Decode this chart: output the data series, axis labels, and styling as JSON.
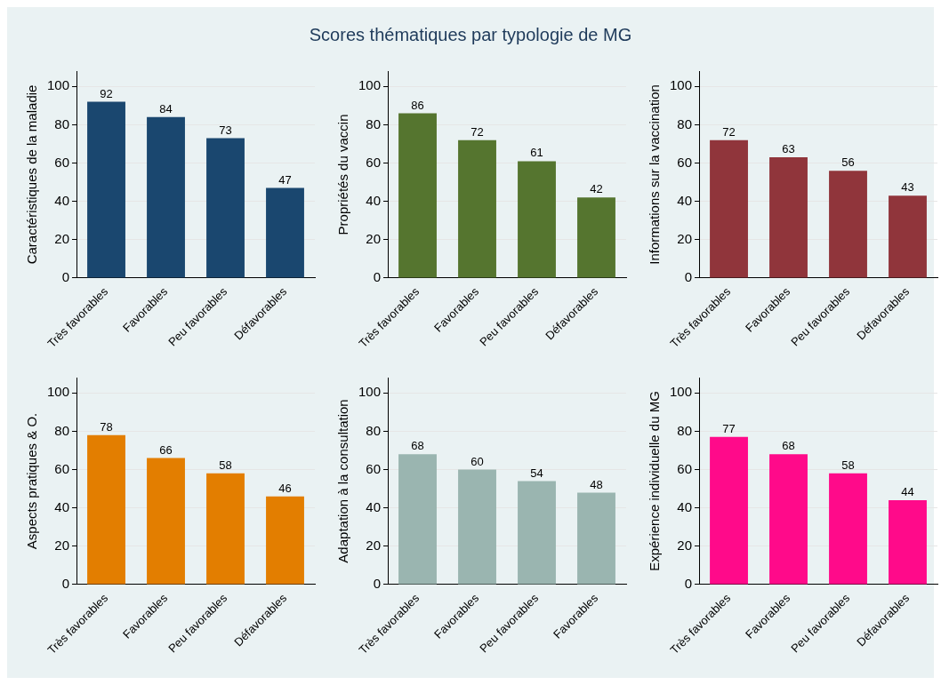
{
  "chart_data": [
    {
      "type": "other",
      "title": "Scores thématiques par typologie de MG"
    },
    {
      "type": "bar",
      "ylabel": "Caractéristiques de la maladie",
      "categories": [
        "Très favorables",
        "Favorables",
        "Peu favorables",
        "Défavorables"
      ],
      "values": [
        92,
        84,
        73,
        47
      ],
      "color": "#1a476f",
      "ylim": [
        0,
        108
      ],
      "yticks": [
        0,
        20,
        40,
        60,
        80,
        100
      ],
      "grid": "y",
      "data_labels": true
    },
    {
      "type": "bar",
      "ylabel": "Propriétés du vaccin",
      "categories": [
        "Très favorables",
        "Favorables",
        "Peu favorables",
        "Défavorables"
      ],
      "values": [
        86,
        72,
        61,
        42
      ],
      "color": "#55752f",
      "ylim": [
        0,
        108
      ],
      "yticks": [
        0,
        20,
        40,
        60,
        80,
        100
      ],
      "grid": "y",
      "data_labels": true
    },
    {
      "type": "bar",
      "ylabel": "Informations sur la vaccination",
      "categories": [
        "Très favorables",
        "Favorables",
        "Peu favorables",
        "Défavorables"
      ],
      "values": [
        72,
        63,
        56,
        43
      ],
      "color": "#90353b",
      "ylim": [
        0,
        108
      ],
      "yticks": [
        0,
        20,
        40,
        60,
        80,
        100
      ],
      "grid": "y",
      "data_labels": true
    },
    {
      "type": "bar",
      "ylabel": "Aspects pratiques & O.",
      "categories": [
        "Très favorables",
        "Favorables",
        "Peu favorables",
        "Défavorables"
      ],
      "values": [
        78,
        66,
        58,
        46
      ],
      "color": "#e37e00",
      "ylim": [
        0,
        108
      ],
      "yticks": [
        0,
        20,
        40,
        60,
        80,
        100
      ],
      "grid": "y",
      "data_labels": true
    },
    {
      "type": "bar",
      "ylabel": "Adaptation à la consultation",
      "categories": [
        "Très favorables",
        "Favorables",
        "Peu favorables",
        "Favorables"
      ],
      "values": [
        68,
        60,
        54,
        48
      ],
      "color": "#9ab5b0",
      "ylim": [
        0,
        108
      ],
      "yticks": [
        0,
        20,
        40,
        60,
        80,
        100
      ],
      "grid": "y",
      "data_labels": true
    },
    {
      "type": "bar",
      "ylabel": "Expérience individuelle du MG",
      "categories": [
        "Très favorables",
        "Favorables",
        "Peu favorables",
        "Défavorables"
      ],
      "values": [
        77,
        68,
        58,
        44
      ],
      "color": "#ff0a8a",
      "ylim": [
        0,
        108
      ],
      "yticks": [
        0,
        20,
        40,
        60,
        80,
        100
      ],
      "grid": "y",
      "data_labels": true
    }
  ]
}
